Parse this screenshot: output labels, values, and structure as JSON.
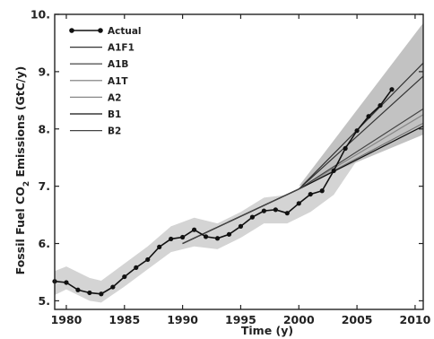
{
  "chart_data": {
    "type": "line",
    "xlabel": "Time (y)",
    "ylabel": "Fossil Fuel CO",
    "ylabel_sub": "2",
    "ylabel_tail": " Emissions (GtC/y)",
    "xlim": [
      1979,
      2010.7
    ],
    "ylim": [
      4.85,
      10.0
    ],
    "xticks": [
      1980,
      1985,
      1990,
      1995,
      2000,
      2005,
      2010
    ],
    "yticks": [
      5.0,
      6.0,
      7.0,
      8.0,
      9.0,
      10.0
    ],
    "ytick_labels": [
      "5.",
      "6.",
      "7.",
      "8.",
      "9.",
      "10."
    ],
    "grid": false,
    "legend_position": "top-left",
    "uncertainty_band": {
      "x": [
        1979,
        1980,
        1982,
        1983,
        1985,
        1987,
        1989,
        1991,
        1993,
        1995,
        1997,
        1999,
        2001,
        2003,
        2005,
        2007,
        2008.5
      ],
      "lower": [
        5.1,
        5.2,
        5.0,
        4.97,
        5.25,
        5.55,
        5.85,
        5.95,
        5.9,
        6.1,
        6.35,
        6.35,
        6.55,
        6.85,
        7.45,
        7.95,
        8.25
      ],
      "upper": [
        5.52,
        5.6,
        5.4,
        5.35,
        5.65,
        5.95,
        6.3,
        6.45,
        6.35,
        6.55,
        6.8,
        6.85,
        7.05,
        7.25,
        7.95,
        8.5,
        8.85
      ]
    },
    "scenario_envelope": {
      "x": [
        2000,
        2010.7
      ],
      "lower": [
        7.0,
        7.9
      ],
      "upper": [
        7.0,
        9.85
      ]
    },
    "series": [
      {
        "name": "Actual",
        "style": "line-markers",
        "color": "#111111",
        "x": [
          1979,
          1980,
          1981,
          1982,
          1983,
          1984,
          1985,
          1986,
          1987,
          1988,
          1989,
          1990,
          1991,
          1992,
          1993,
          1994,
          1995,
          1996,
          1997,
          1998,
          1999,
          2000,
          2001,
          2002,
          2003,
          2004,
          2005,
          2006,
          2007,
          2008
        ],
        "y": [
          5.34,
          5.32,
          5.19,
          5.14,
          5.12,
          5.24,
          5.42,
          5.58,
          5.72,
          5.94,
          6.08,
          6.11,
          6.24,
          6.12,
          6.09,
          6.16,
          6.3,
          6.46,
          6.57,
          6.59,
          6.53,
          6.7,
          6.86,
          6.92,
          7.27,
          7.66,
          7.97,
          8.22,
          8.41,
          8.69
        ]
      },
      {
        "name": "A1F1",
        "style": "line",
        "color": "#333333",
        "x": [
          1990,
          2000,
          2010.7
        ],
        "y": [
          6.0,
          6.95,
          9.15
        ]
      },
      {
        "name": "A1B",
        "style": "line",
        "color": "#333333",
        "x": [
          1990,
          2000,
          2010.7
        ],
        "y": [
          6.0,
          6.95,
          8.92
        ]
      },
      {
        "name": "A1T",
        "style": "line",
        "color": "#777777",
        "x": [
          1990,
          2000,
          2010.7
        ],
        "y": [
          6.0,
          6.95,
          8.1
        ]
      },
      {
        "name": "A2",
        "style": "line",
        "color": "#888888",
        "x": [
          1990,
          2000,
          2010.7
        ],
        "y": [
          6.0,
          6.95,
          8.25
        ]
      },
      {
        "name": "B1",
        "style": "line",
        "color": "#111111",
        "x": [
          1990,
          2000,
          2010.7
        ],
        "y": [
          6.0,
          6.95,
          8.05
        ]
      },
      {
        "name": "B2",
        "style": "line",
        "color": "#444444",
        "x": [
          1990,
          2000,
          2010.7
        ],
        "y": [
          6.0,
          6.95,
          8.35
        ]
      }
    ],
    "colors": {
      "band": "#d4d4d4",
      "envelope": "#c2c2c2",
      "axis": "#222222"
    }
  }
}
